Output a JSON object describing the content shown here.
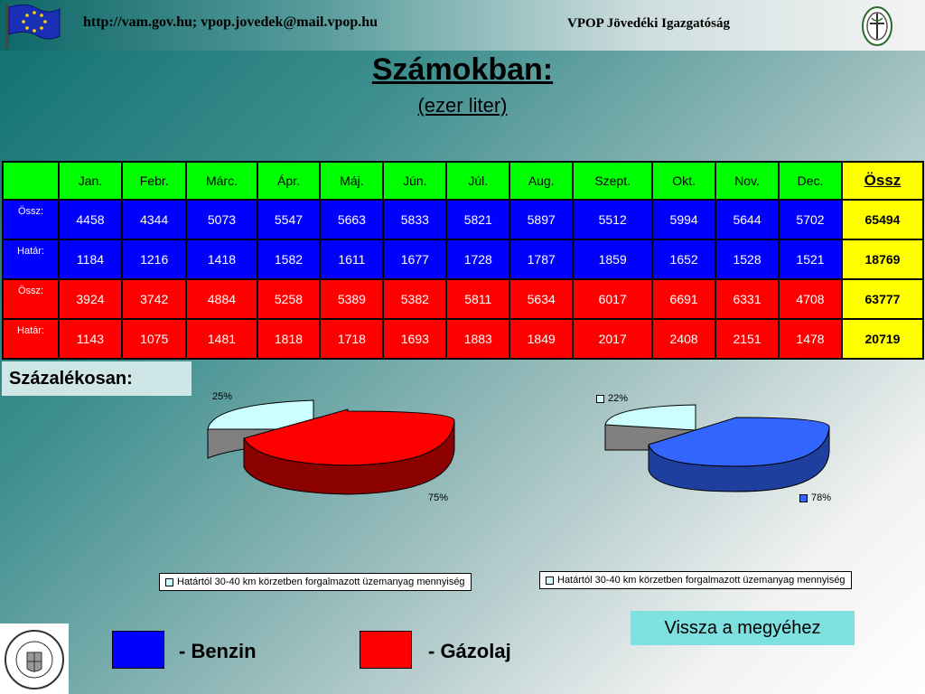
{
  "header": {
    "url_text": "http://vam.gov.hu; vpop.jovedek@mail.vpop.hu",
    "org_name": "VPOP Jövedéki Igazgatóság"
  },
  "title": "Számokban:",
  "subtitle": "(ezer liter)",
  "table": {
    "columns": [
      "Jan.",
      "Febr.",
      "Márc.",
      "Ápr.",
      "Máj.",
      "Jún.",
      "Júl.",
      "Aug.",
      "Szept.",
      "Okt.",
      "Nov.",
      "Dec.",
      "Össz"
    ],
    "rows": [
      {
        "label": "Össz:",
        "values": [
          "4458",
          "4344",
          "5073",
          "5547",
          "5663",
          "5833",
          "5821",
          "5897",
          "5512",
          "5994",
          "5644",
          "5702"
        ],
        "total": "65494"
      },
      {
        "label": "Határ:",
        "values": [
          "1184",
          "1216",
          "1418",
          "1582",
          "1611",
          "1677",
          "1728",
          "1787",
          "1859",
          "1652",
          "1528",
          "1521"
        ],
        "total": "18769"
      },
      {
        "label": "Össz:",
        "values": [
          "3924",
          "3742",
          "4884",
          "5258",
          "5389",
          "5382",
          "5811",
          "5634",
          "6017",
          "6691",
          "6331",
          "4708"
        ],
        "total": "63777"
      },
      {
        "label": "Határ:",
        "values": [
          "1143",
          "1075",
          "1481",
          "1818",
          "1718",
          "1693",
          "1883",
          "1849",
          "2017",
          "2408",
          "2151",
          "1478"
        ],
        "total": "20719"
      }
    ]
  },
  "percent_heading": "Százalékosan:",
  "pies": [
    {
      "small_label": "25%",
      "large_label": "75%",
      "small_value": 25,
      "large_value": 75,
      "color": "#ff0000",
      "small_color": "#ccffff",
      "legend": "Határtól 30-40 km körzetben forgalmazott üzemanyag mennyiség"
    },
    {
      "small_label": "22%",
      "large_label": "78%",
      "small_value": 22,
      "large_value": 78,
      "color": "#3366ff",
      "small_color": "#ccffff",
      "legend": "Határtól 30-40 km körzetben forgalmazott üzemanyag mennyiség"
    }
  ],
  "back_button": "Vissza a megyéhez",
  "legend": {
    "benzin": "- Benzin",
    "gazolaj": "- Gázolaj",
    "benzin_color": "#0000ff",
    "gazolaj_color": "#ff0000"
  },
  "icons": [
    "eu-flag-icon",
    "emblem-icon",
    "anniversary-stamp-icon"
  ]
}
